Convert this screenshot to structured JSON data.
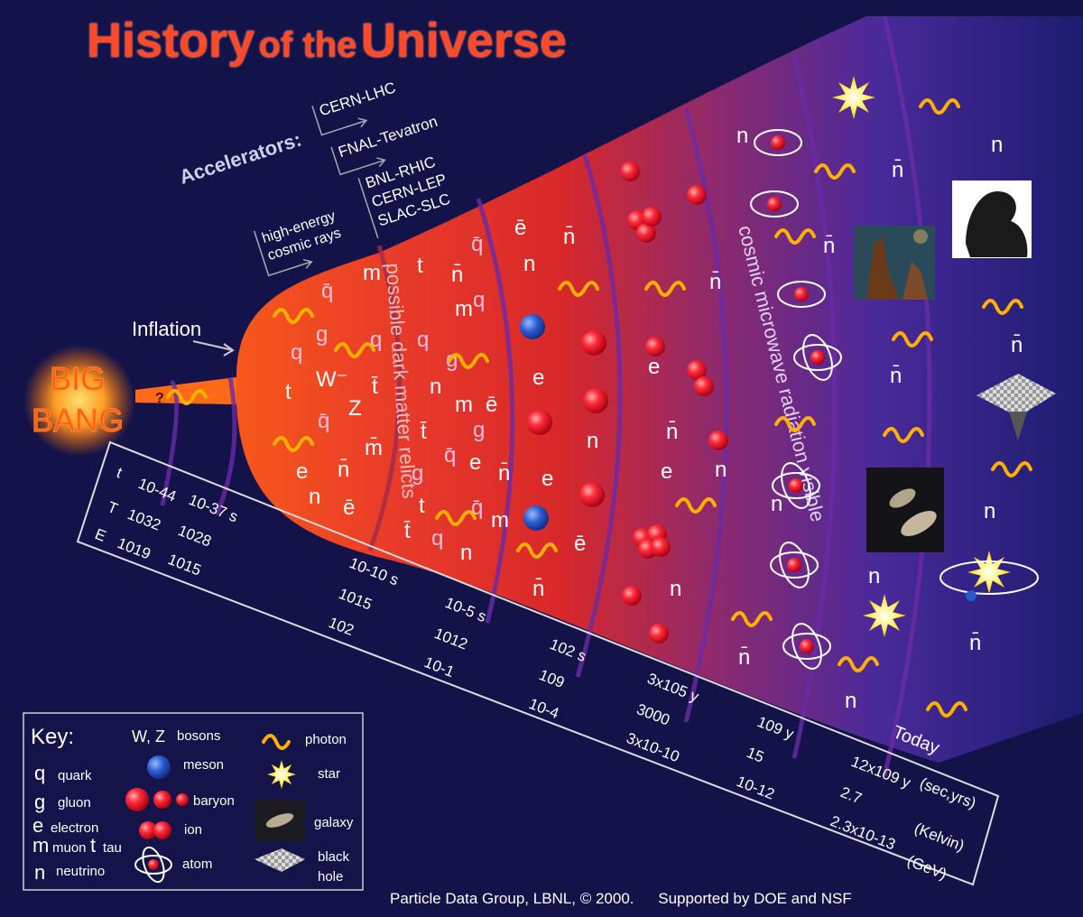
{
  "title": {
    "word1": "History",
    "word2": "of the",
    "word3": "Universe"
  },
  "big_bang": {
    "line1": "BIG",
    "line2": "BANG",
    "mark": "?"
  },
  "inflation_label": "Inflation",
  "accelerators": {
    "heading": "Accelerators:",
    "items": [
      "CERN-LHC",
      "FNAL-Tevatron",
      "BNL-RHIC",
      "CERN-LEP",
      "SLAC-SLC"
    ],
    "cosmic": [
      "high-energy",
      "cosmic rays"
    ]
  },
  "band_labels": {
    "dark_matter": "possible dark matter relicts",
    "cmb": "cosmic microwave radiation visible"
  },
  "scale": {
    "row_labels": [
      "t",
      "T",
      "E"
    ],
    "units": [
      "(sec,yrs)",
      "(Kelvin)",
      "(GeV)"
    ],
    "today": "Today",
    "ticks": [
      {
        "t": "10-44",
        "T": "1032",
        "E": "1019"
      },
      {
        "t": "10-37 s",
        "T": "1028",
        "E": "1015"
      },
      {
        "t": "10-10 s",
        "T": "1015",
        "E": "102"
      },
      {
        "t": "10-5 s",
        "T": "1012",
        "E": "10-1"
      },
      {
        "t": "102 s",
        "T": "109",
        "E": "10-4"
      },
      {
        "t": "3x105 y",
        "T": "3000",
        "E": "3x10-10"
      },
      {
        "t": "109 y",
        "T": "15",
        "E": "10-12"
      },
      {
        "t": "12x109 y",
        "T": "2.7",
        "E": "2.3x10-13"
      }
    ]
  },
  "particle_symbols": {
    "quark": "q",
    "antiquark": "q̄",
    "gluon": "g",
    "electron": "e",
    "positron": "ē",
    "muon": "m",
    "antimuon": "m̄",
    "tau": "t",
    "antitau": "t̄",
    "neutrino": "n",
    "antineutrino": "n̄",
    "W": "W",
    "Z": "Z",
    "W_minus": "W⁻"
  },
  "key": {
    "title": "Key:",
    "entries": [
      {
        "symbol": "q",
        "label": "quark"
      },
      {
        "symbol": "g",
        "label": "gluon"
      },
      {
        "symbol": "e",
        "label": "electron"
      },
      {
        "symbol": "m",
        "label": "muon"
      },
      {
        "symbol": "t",
        "label": "tau"
      },
      {
        "symbol": "n",
        "label": "neutrino"
      },
      {
        "symbol": "W, Z",
        "label": "bosons"
      },
      {
        "symbol": "qq",
        "label": "meson"
      },
      {
        "symbol": "qqq",
        "label": "baryon"
      },
      {
        "symbol": "",
        "label": "ion"
      },
      {
        "symbol": "",
        "label": "atom"
      },
      {
        "symbol": "",
        "label": "photon"
      },
      {
        "symbol": "",
        "label": "star"
      },
      {
        "symbol": "",
        "label": "galaxy"
      },
      {
        "symbol": "",
        "label": "black hole"
      }
    ]
  },
  "credits": {
    "left": "Particle Data Group, LBNL, © 2000.",
    "right": "Supported by DOE and NSF"
  },
  "colors": {
    "background": "#13134a",
    "title": "#ff4a2a",
    "photon": "#ffb000",
    "particle": "#ff2030",
    "meson": "#2050c0",
    "ring": "#6a2aa8"
  }
}
